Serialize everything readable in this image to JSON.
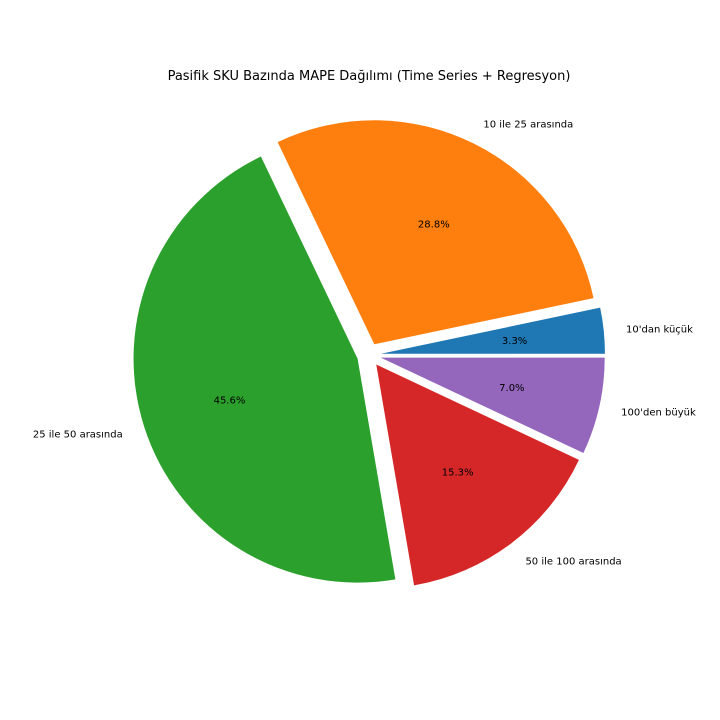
{
  "chart_data": {
    "type": "pie",
    "title": "Pasifik SKU Bazında MAPE Dağılımı (Time Series + Regresyon)",
    "slices": [
      {
        "label": "10'dan küçük",
        "value": 3.3,
        "pct_label": "3.3%",
        "color": "#1f77b4"
      },
      {
        "label": "10 ile 25 arasında",
        "value": 28.8,
        "pct_label": "28.8%",
        "color": "#ff7f0e"
      },
      {
        "label": "25 ile 50 arasında",
        "value": 45.6,
        "pct_label": "45.6%",
        "color": "#2ca02c"
      },
      {
        "label": "50 ile 100 arasında",
        "value": 15.3,
        "pct_label": "15.3%",
        "color": "#d62728"
      },
      {
        "label": "100'den büyük",
        "value": 7.0,
        "pct_label": "7.0%",
        "color": "#9467bd"
      }
    ],
    "start_angle_deg": 0,
    "direction": "counterclockwise",
    "exploded": true,
    "legend": "none"
  }
}
